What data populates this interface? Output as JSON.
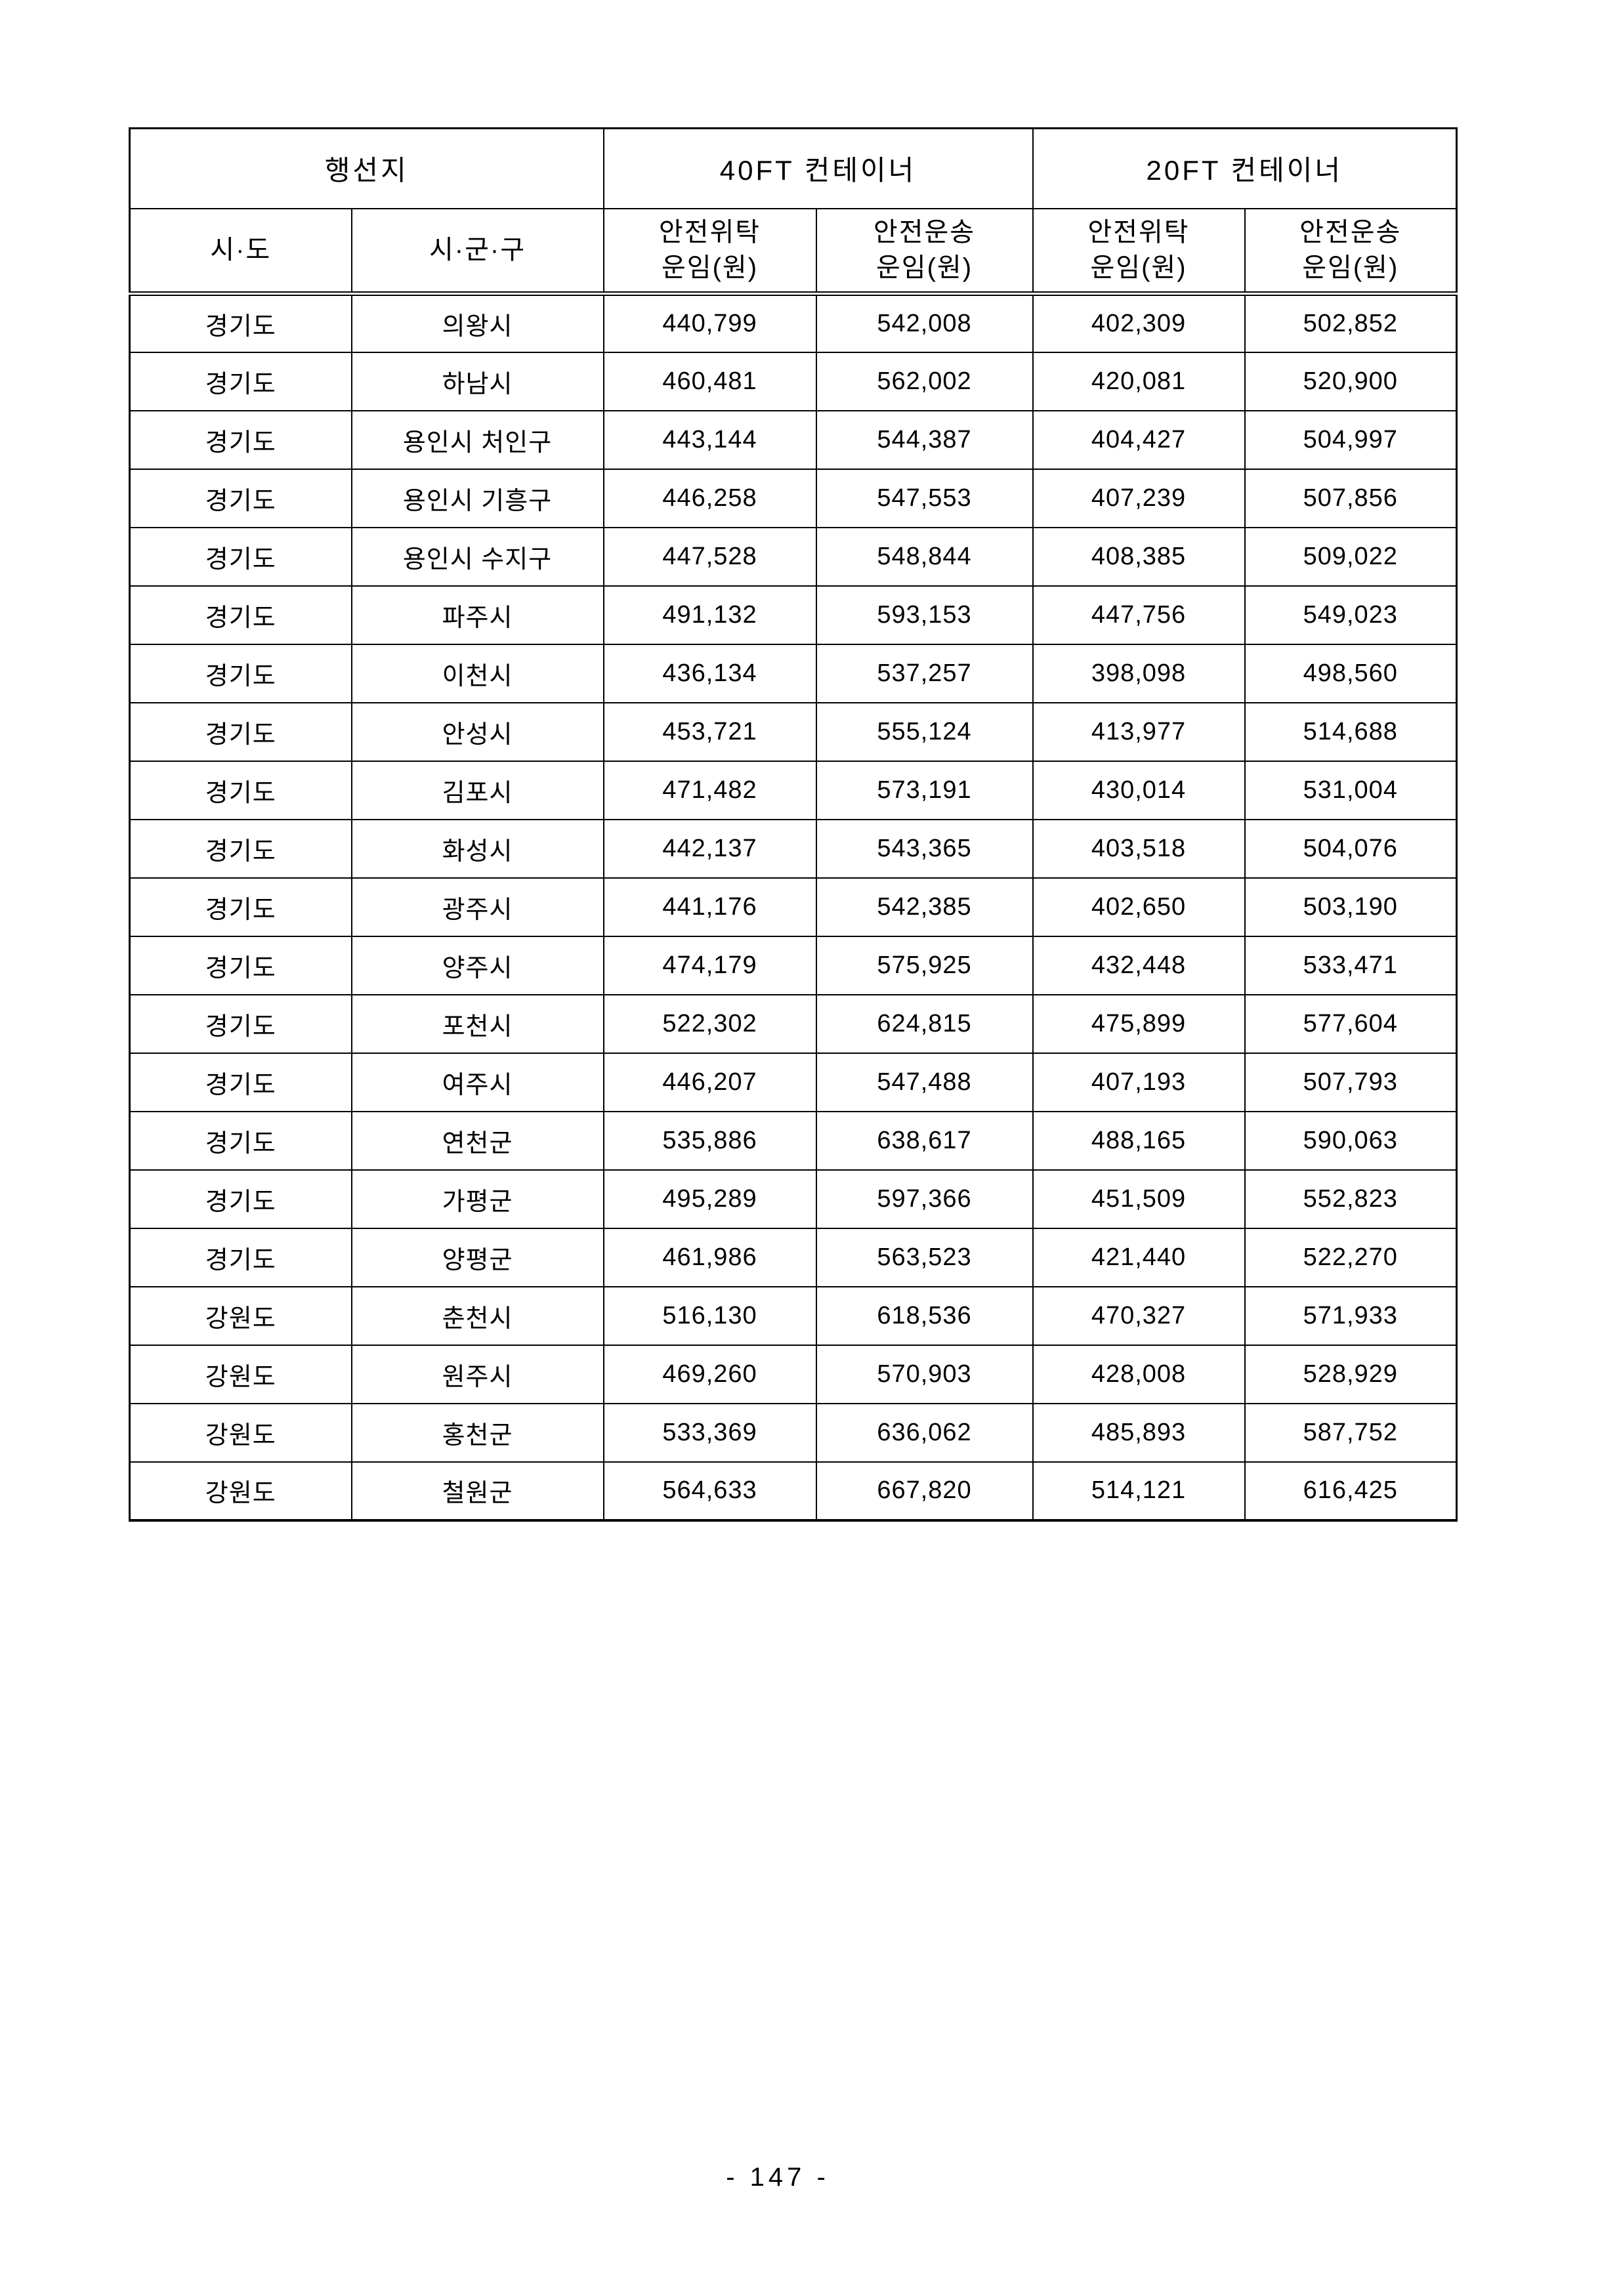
{
  "page": {
    "number_label": "- 147 -"
  },
  "table": {
    "header": {
      "destination_group": "행선지",
      "ft40_group": "40FT 컨테이너",
      "ft20_group": "20FT 컨테이너",
      "col_sido": "시·도",
      "col_sigungu": "시·군·구",
      "safe_consign": "안전위탁",
      "safe_transport": "안전운송",
      "fare_unit": "운임(원)"
    },
    "columns": [
      "시·도",
      "시·군·구",
      "40FT 안전위탁 운임(원)",
      "40FT 안전운송 운임(원)",
      "20FT 안전위탁 운임(원)",
      "20FT 안전운송 운임(원)"
    ],
    "rows": [
      [
        "경기도",
        "의왕시",
        "440,799",
        "542,008",
        "402,309",
        "502,852"
      ],
      [
        "경기도",
        "하남시",
        "460,481",
        "562,002",
        "420,081",
        "520,900"
      ],
      [
        "경기도",
        "용인시 처인구",
        "443,144",
        "544,387",
        "404,427",
        "504,997"
      ],
      [
        "경기도",
        "용인시 기흥구",
        "446,258",
        "547,553",
        "407,239",
        "507,856"
      ],
      [
        "경기도",
        "용인시 수지구",
        "447,528",
        "548,844",
        "408,385",
        "509,022"
      ],
      [
        "경기도",
        "파주시",
        "491,132",
        "593,153",
        "447,756",
        "549,023"
      ],
      [
        "경기도",
        "이천시",
        "436,134",
        "537,257",
        "398,098",
        "498,560"
      ],
      [
        "경기도",
        "안성시",
        "453,721",
        "555,124",
        "413,977",
        "514,688"
      ],
      [
        "경기도",
        "김포시",
        "471,482",
        "573,191",
        "430,014",
        "531,004"
      ],
      [
        "경기도",
        "화성시",
        "442,137",
        "543,365",
        "403,518",
        "504,076"
      ],
      [
        "경기도",
        "광주시",
        "441,176",
        "542,385",
        "402,650",
        "503,190"
      ],
      [
        "경기도",
        "양주시",
        "474,179",
        "575,925",
        "432,448",
        "533,471"
      ],
      [
        "경기도",
        "포천시",
        "522,302",
        "624,815",
        "475,899",
        "577,604"
      ],
      [
        "경기도",
        "여주시",
        "446,207",
        "547,488",
        "407,193",
        "507,793"
      ],
      [
        "경기도",
        "연천군",
        "535,886",
        "638,617",
        "488,165",
        "590,063"
      ],
      [
        "경기도",
        "가평군",
        "495,289",
        "597,366",
        "451,509",
        "552,823"
      ],
      [
        "경기도",
        "양평군",
        "461,986",
        "563,523",
        "421,440",
        "522,270"
      ],
      [
        "강원도",
        "춘천시",
        "516,130",
        "618,536",
        "470,327",
        "571,933"
      ],
      [
        "강원도",
        "원주시",
        "469,260",
        "570,903",
        "428,008",
        "528,929"
      ],
      [
        "강원도",
        "홍천군",
        "533,369",
        "636,062",
        "485,893",
        "587,752"
      ],
      [
        "강원도",
        "철원군",
        "564,633",
        "667,820",
        "514,121",
        "616,425"
      ]
    ]
  }
}
